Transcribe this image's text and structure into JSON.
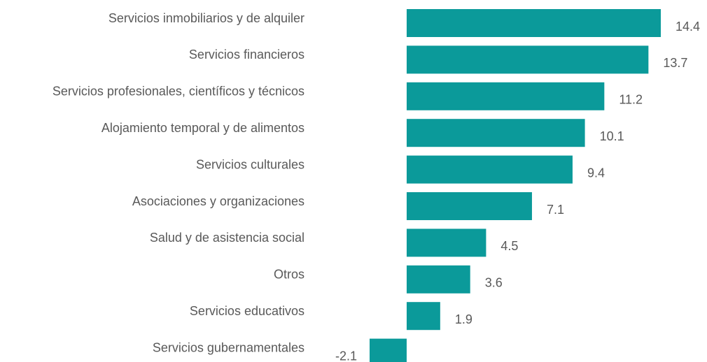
{
  "chart_data": {
    "type": "bar",
    "orientation": "horizontal",
    "categories": [
      "Servicios inmobiliarios y de alquiler",
      "Servicios financieros",
      "Servicios profesionales, científicos y técnicos",
      "Alojamiento temporal y de alimentos",
      "Servicios culturales",
      "Asociaciones y organizaciones",
      "Salud y de asistencia social",
      "Otros",
      "Servicios educativos",
      "Servicios gubernamentales"
    ],
    "values": [
      14.4,
      13.7,
      11.2,
      10.1,
      9.4,
      7.1,
      4.5,
      3.6,
      1.9,
      -2.1
    ],
    "color": "#0b9a9a"
  }
}
